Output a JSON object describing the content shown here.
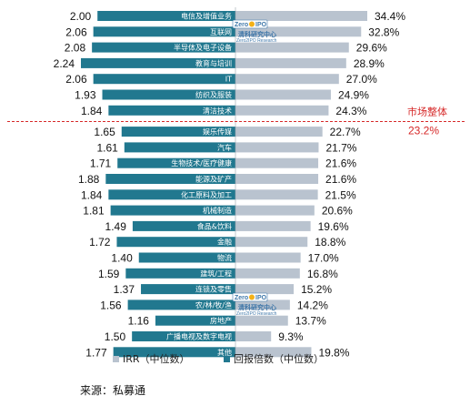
{
  "chart_data": {
    "type": "bar",
    "orientation": "horizontal-back-to-back",
    "categories": [
      "电信及增值业务",
      "互联网",
      "半导体及电子设备",
      "教育与培训",
      "IT",
      "纺织及服装",
      "清洁技术",
      "娱乐传媒",
      "汽车",
      "生物技术/医疗健康",
      "能源及矿产",
      "化工原料及加工",
      "机械制造",
      "食品&饮料",
      "金融",
      "物流",
      "建筑/工程",
      "连锁及零售",
      "农/林/牧/渔",
      "房地产",
      "广播电视及数字电视",
      "其他"
    ],
    "series": [
      {
        "name": "回报倍数（中位数）",
        "color": "#21788f",
        "side": "left",
        "values": [
          2.0,
          2.06,
          2.08,
          2.24,
          2.06,
          1.93,
          1.84,
          1.65,
          1.61,
          1.71,
          1.88,
          1.84,
          1.81,
          1.49,
          1.72,
          1.4,
          1.59,
          1.37,
          1.56,
          1.16,
          1.5,
          1.77
        ]
      },
      {
        "name": "IRR（中位数）",
        "color": "#b9c3cf",
        "side": "right",
        "unit": "%",
        "values": [
          34.4,
          32.8,
          29.6,
          28.9,
          27.0,
          24.9,
          24.3,
          22.7,
          21.7,
          21.6,
          21.6,
          21.5,
          20.6,
          19.6,
          18.8,
          17.0,
          16.8,
          15.2,
          14.2,
          13.7,
          9.3,
          19.8
        ]
      }
    ],
    "marker": {
      "label": "市场整体",
      "value": "23.2%",
      "between_categories": [
        "清洁技术",
        "娱乐传媒"
      ]
    },
    "legend_position": "bottom"
  },
  "source": "来源：私募通",
  "watermark": {
    "logo_left": "Zero",
    "logo_right": "IPO",
    "title": "清科研究中心",
    "subtitle": "Zero2IPO Research"
  },
  "colors": {
    "left_bar": "#21788f",
    "right_bar": "#b9c3cf",
    "marker": "#d62828"
  }
}
